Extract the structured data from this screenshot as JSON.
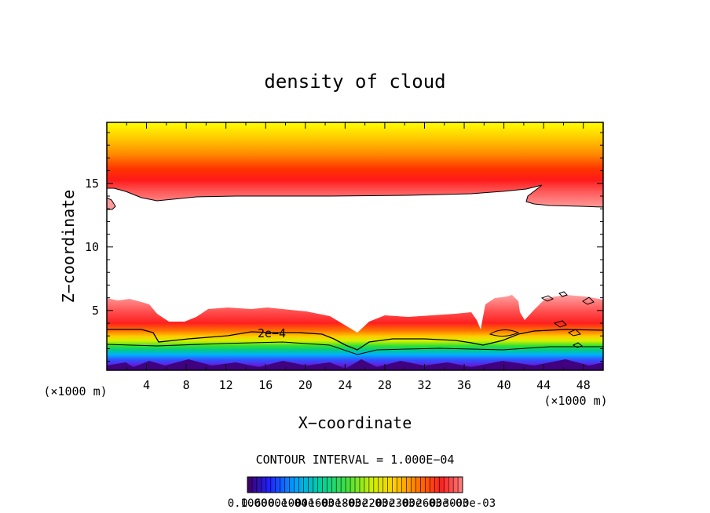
{
  "chart_data": {
    "type": "heatmap",
    "title": "density of cloud",
    "xlabel": "X−coordinate",
    "ylabel": "Z−coordinate",
    "x_unit_left": "(×1000 m)",
    "x_unit_right": "(×1000 m)",
    "xlim": [
      0,
      50
    ],
    "ylim": [
      0.3,
      19.8
    ],
    "x_ticks": [
      4,
      8,
      12,
      16,
      20,
      24,
      28,
      32,
      36,
      40,
      44,
      48
    ],
    "y_ticks": [
      5,
      10,
      15
    ],
    "contour_label": "2e−4",
    "contour_interval_text": "CONTOUR INTERVAL = 1.000E−04",
    "colorbar_labels": [
      "0.1000",
      "0.6000e-04",
      "0.1000e-03",
      "0.1600e-03",
      "0.1800e-03",
      "0.2200e-03",
      "0.2300e-03",
      "0.2600e-03",
      "0.3000e-03"
    ],
    "colors": {
      "frame": "#000000",
      "lower_bright": "#ff2020",
      "top_yellow": "#ffff00",
      "gap": "#ffffff"
    }
  }
}
